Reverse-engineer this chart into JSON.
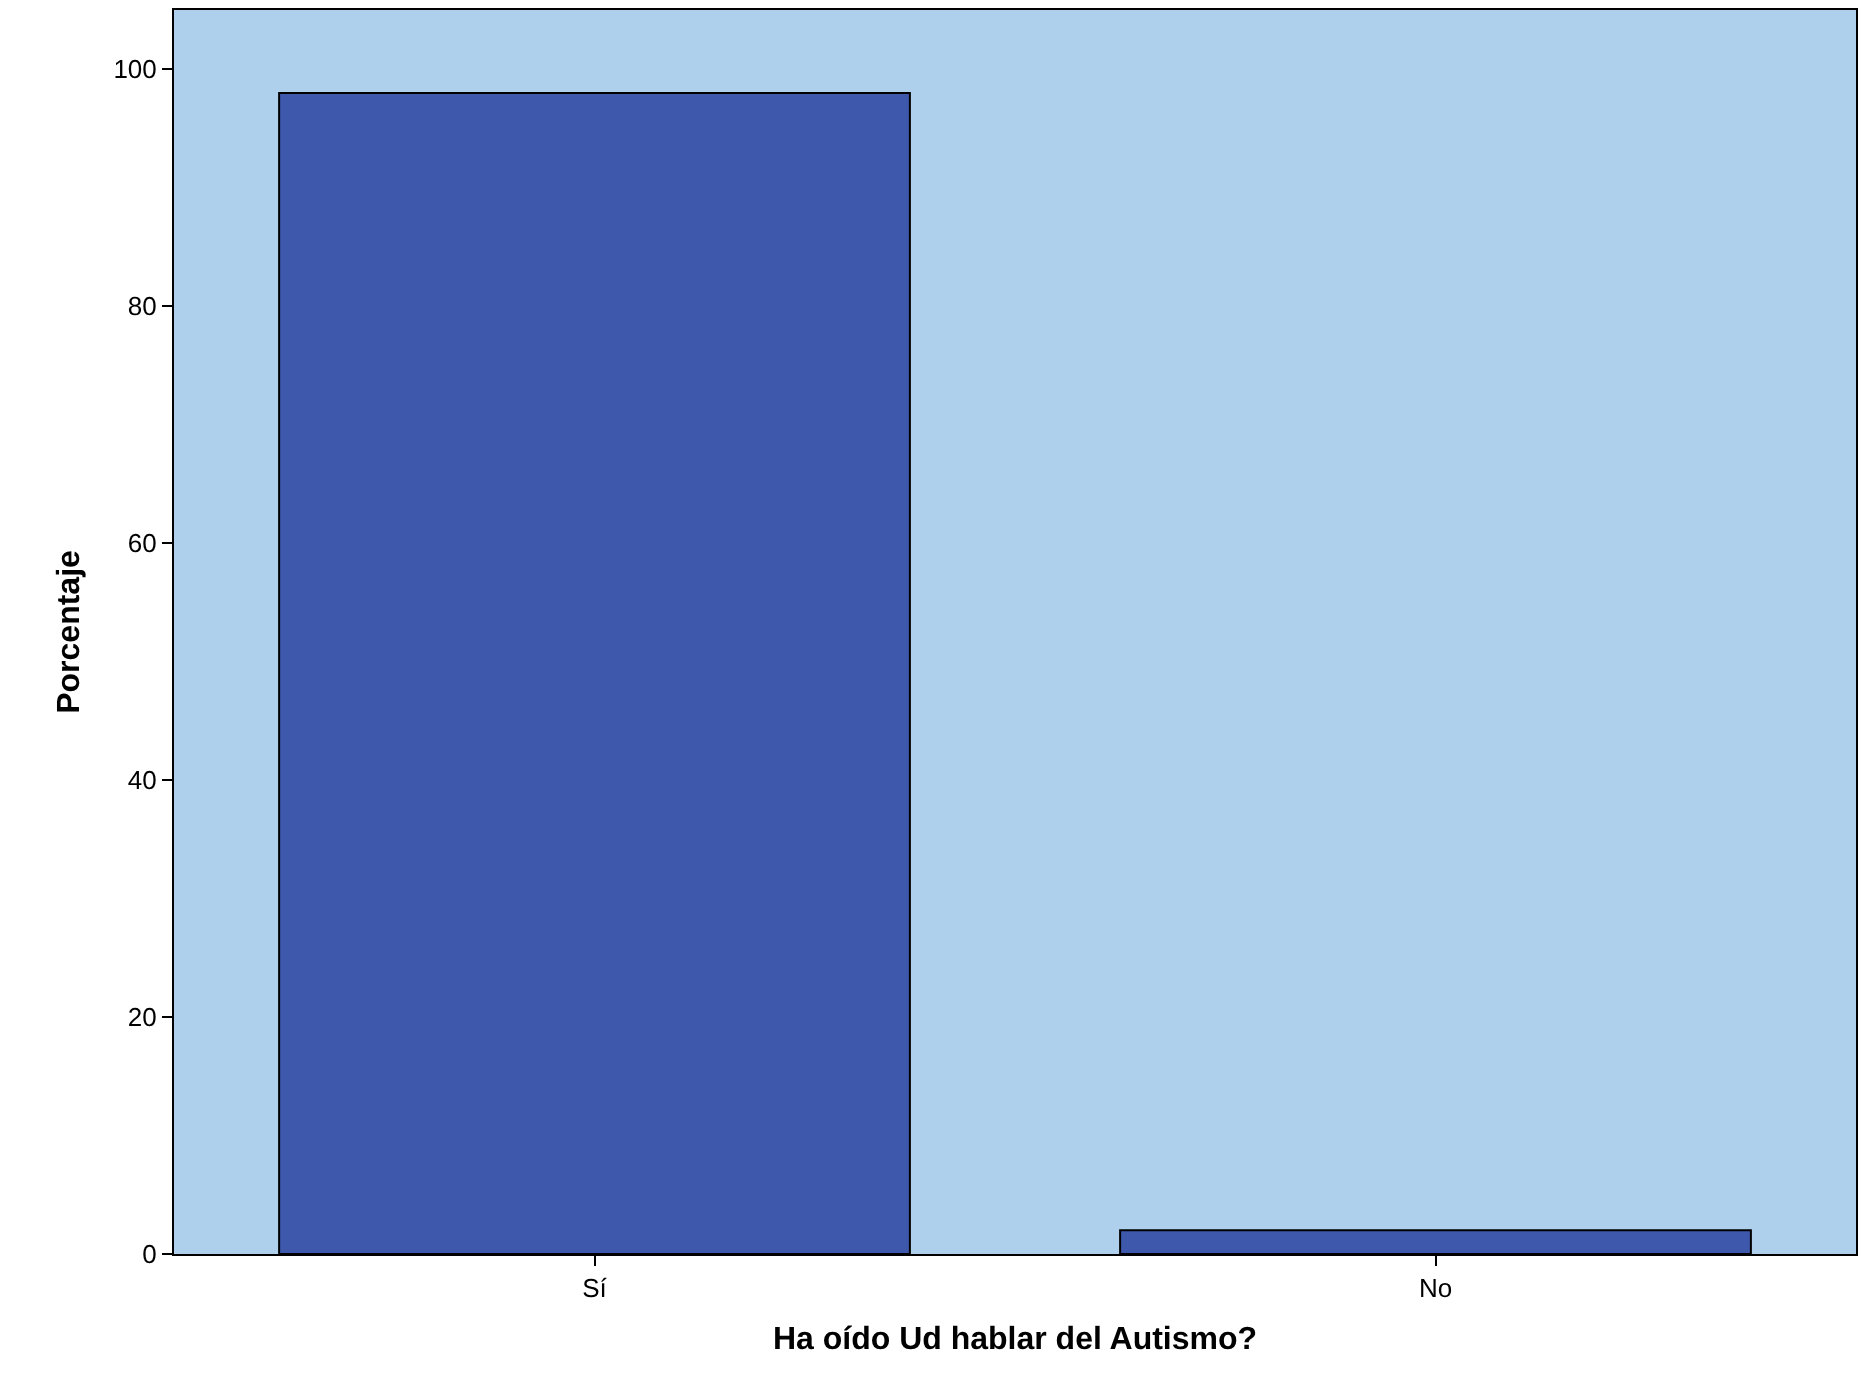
{
  "chart_data": {
    "type": "bar",
    "xlabel": "Ha oído Ud hablar del Autismo?",
    "ylabel": "Porcentaje",
    "categories": [
      "Sí",
      "No"
    ],
    "values": [
      98,
      2
    ],
    "color": "#3e58ac",
    "ylim": [
      0,
      105
    ],
    "yticks": [
      0,
      20,
      40,
      60,
      80,
      100
    ],
    "grid": false
  }
}
